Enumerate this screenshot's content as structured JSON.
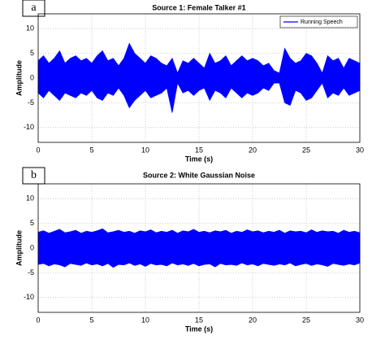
{
  "chart_data": [
    {
      "type": "area",
      "panel_label": "a",
      "title": "Source 1: Female Talker #1",
      "xlabel": "Time (s)",
      "ylabel": "Amplitude",
      "x": [
        0,
        0.5,
        1,
        1.5,
        2,
        2.5,
        3,
        3.5,
        4,
        4.5,
        5,
        5.5,
        6,
        6.5,
        7,
        7.5,
        8,
        8.5,
        9,
        9.5,
        10,
        10.5,
        11,
        11.5,
        12,
        12.5,
        13,
        13.5,
        14,
        14.5,
        15,
        15.5,
        16,
        16.5,
        17,
        17.5,
        18,
        18.5,
        19,
        19.5,
        20,
        20.5,
        21,
        21.5,
        22,
        22.5,
        23,
        23.5,
        24,
        24.5,
        25,
        25.5,
        26,
        26.5,
        27,
        27.5,
        28,
        28.5,
        29,
        29.5,
        30
      ],
      "series": [
        {
          "name": "Running Speech",
          "color": "#0000ff",
          "values": [
            3.5,
            4.5,
            3,
            4,
            5.5,
            3,
            4,
            4.5,
            3.5,
            4,
            3,
            4.5,
            5.5,
            3.5,
            4,
            2.5,
            4,
            7,
            5,
            4,
            3,
            4.5,
            4,
            3,
            2.5,
            4,
            1,
            3.5,
            3,
            4,
            3,
            2,
            5,
            3,
            3.5,
            4.5,
            2.5,
            3.5,
            4.5,
            3.5,
            4,
            3.5,
            2.5,
            3,
            1.5,
            1,
            6,
            4,
            3,
            3.5,
            5,
            4.5,
            3,
            1,
            4.5,
            3.5,
            4,
            2,
            4,
            3.5,
            3
          ],
          "lower": [
            -3,
            -4,
            -2.5,
            -3.5,
            -4.5,
            -3,
            -3.5,
            -4,
            -3,
            -3.5,
            -2.5,
            -4,
            -4.5,
            -3,
            -3.5,
            -2,
            -3.5,
            -6,
            -4.5,
            -3.5,
            -2.5,
            -4,
            -3.5,
            -3,
            -2,
            -7,
            -1,
            -3,
            -2.5,
            -3.5,
            -2.5,
            -2,
            -4.5,
            -2.5,
            -3,
            -4,
            -2,
            -3,
            -4,
            -3,
            -3.5,
            -3,
            -2,
            -2.5,
            -1,
            -1,
            -5,
            -5.5,
            -2.5,
            -3,
            -4.5,
            -4,
            -2.5,
            -1,
            -4,
            -3,
            -3.5,
            -2,
            -3.5,
            -3,
            -2.5
          ]
        }
      ],
      "xlim": [
        0,
        30
      ],
      "ylim": [
        -13,
        13
      ],
      "xticks": [
        0,
        5,
        10,
        15,
        20,
        25,
        30
      ],
      "yticks": [
        -10,
        -5,
        0,
        5,
        10
      ],
      "grid": true,
      "legend": "upper right"
    },
    {
      "type": "area",
      "panel_label": "b",
      "title": "Source 2: White Gaussian Noise",
      "xlabel": "Time (s)",
      "ylabel": "Amplitude",
      "x": [
        0,
        0.5,
        1,
        1.5,
        2,
        2.5,
        3,
        3.5,
        4,
        4.5,
        5,
        5.5,
        6,
        6.5,
        7,
        7.5,
        8,
        8.5,
        9,
        9.5,
        10,
        10.5,
        11,
        11.5,
        12,
        12.5,
        13,
        13.5,
        14,
        14.5,
        15,
        15.5,
        16,
        16.5,
        17,
        17.5,
        18,
        18.5,
        19,
        19.5,
        20,
        20.5,
        21,
        21.5,
        22,
        22.5,
        23,
        23.5,
        24,
        24.5,
        25,
        25.5,
        26,
        26.5,
        27,
        27.5,
        28,
        28.5,
        29,
        29.5,
        30
      ],
      "series": [
        {
          "color": "#0000ff",
          "values": [
            3.2,
            3.5,
            3,
            3.4,
            3.8,
            3.1,
            3.3,
            3.6,
            3,
            3.4,
            3.2,
            3.5,
            3.9,
            3.1,
            3.3,
            3.6,
            3.2,
            3.4,
            3,
            3.5,
            3.3,
            3.7,
            3.1,
            3.4,
            3.2,
            3.6,
            3,
            3.5,
            3.3,
            3.8,
            3.2,
            3.4,
            3.1,
            3.5,
            3.3,
            3.6,
            3,
            3.4,
            3.2,
            3.7,
            3.3,
            3.5,
            3.1,
            3.4,
            3.2,
            3.6,
            3,
            3.5,
            3.3,
            3.4,
            3.1,
            3.7,
            3.2,
            3.5,
            3.3,
            3.4,
            3,
            3.6,
            3.2,
            3.4,
            3.1
          ],
          "lower": [
            -3.3,
            -3.1,
            -3.6,
            -3.2,
            -3.4,
            -3.8,
            -3.1,
            -3.3,
            -3.5,
            -3,
            -3.4,
            -3.2,
            -3.6,
            -3.1,
            -3.9,
            -3.3,
            -3.4,
            -3,
            -3.5,
            -3.2,
            -3.7,
            -3.1,
            -3.4,
            -3.3,
            -3.6,
            -3,
            -3.4,
            -3.2,
            -3.5,
            -3.1,
            -3.6,
            -3.3,
            -3.2,
            -3.8,
            -3.1,
            -3.4,
            -3.3,
            -3.5,
            -3,
            -3.4,
            -3.2,
            -3.6,
            -3.1,
            -3.3,
            -3.5,
            -3.2,
            -3.4,
            -3,
            -3.6,
            -3.3,
            -3.1,
            -3.5,
            -3.2,
            -3.4,
            -3.7,
            -3.1,
            -3.3,
            -3.5,
            -3.2,
            -3.4,
            -3
          ]
        }
      ],
      "xlim": [
        0,
        30
      ],
      "ylim": [
        -13,
        13
      ],
      "xticks": [
        0,
        5,
        10,
        15,
        20,
        25,
        30
      ],
      "yticks": [
        -10,
        -5,
        0,
        5,
        10
      ],
      "grid": true
    }
  ]
}
